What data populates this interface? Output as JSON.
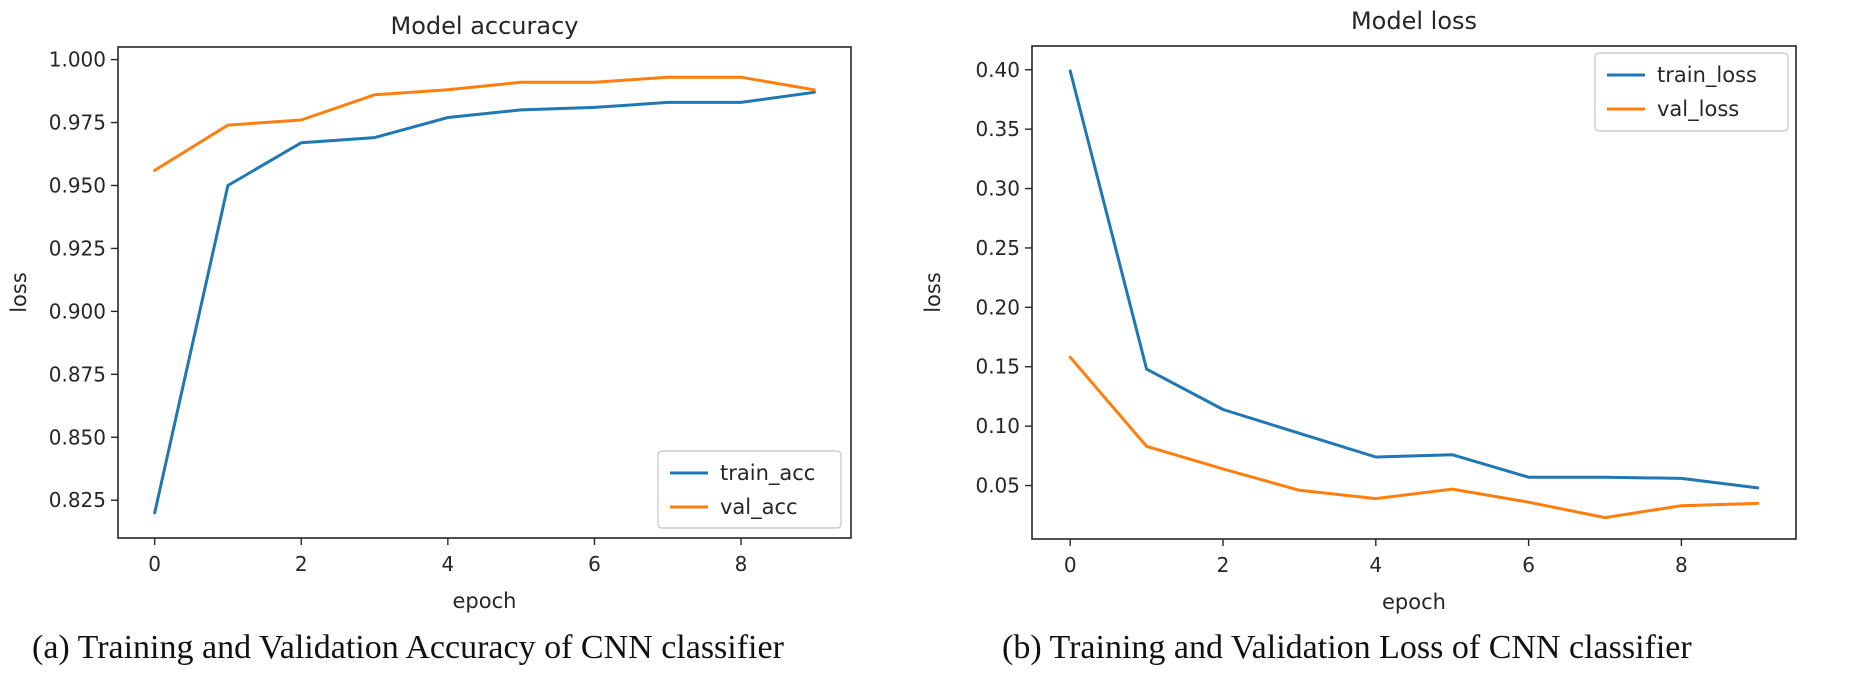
{
  "chart_data": [
    {
      "type": "line",
      "title": "Model accuracy",
      "xlabel": "epoch",
      "ylabel": "loss",
      "xlim": [
        -0.5,
        9.5
      ],
      "ylim": [
        0.81,
        1.005
      ],
      "xticks": [
        0,
        2,
        4,
        6,
        8
      ],
      "xtick_labels": [
        "0",
        "2",
        "4",
        "6",
        "8"
      ],
      "yticks": [
        0.825,
        0.85,
        0.875,
        0.9,
        0.925,
        0.95,
        0.975,
        1.0
      ],
      "ytick_labels": [
        "0.825",
        "0.850",
        "0.875",
        "0.900",
        "0.925",
        "0.950",
        "0.975",
        "1.000"
      ],
      "x": [
        0,
        1,
        2,
        3,
        4,
        5,
        6,
        7,
        8,
        9
      ],
      "series": [
        {
          "name": "train_acc",
          "color": "#1f77b4",
          "values": [
            0.82,
            0.95,
            0.967,
            0.969,
            0.977,
            0.98,
            0.981,
            0.983,
            0.983,
            0.987
          ]
        },
        {
          "name": "val_acc",
          "color": "#ff7f0e",
          "values": [
            0.956,
            0.974,
            0.976,
            0.986,
            0.988,
            0.991,
            0.991,
            0.993,
            0.993,
            0.988
          ]
        }
      ],
      "legend": "lower-right",
      "caption": "(a) Training and Validation Accuracy of CNN classifier"
    },
    {
      "type": "line",
      "title": "Model loss",
      "xlabel": "epoch",
      "ylabel": "loss",
      "xlim": [
        -0.5,
        9.5
      ],
      "ylim": [
        0.005,
        0.42
      ],
      "xticks": [
        0,
        2,
        4,
        6,
        8
      ],
      "xtick_labels": [
        "0",
        "2",
        "4",
        "6",
        "8"
      ],
      "yticks": [
        0.05,
        0.1,
        0.15,
        0.2,
        0.25,
        0.3,
        0.35,
        0.4
      ],
      "ytick_labels": [
        "0.05",
        "0.10",
        "0.15",
        "0.20",
        "0.25",
        "0.30",
        "0.35",
        "0.40"
      ],
      "x": [
        0,
        1,
        2,
        3,
        4,
        5,
        6,
        7,
        8,
        9
      ],
      "series": [
        {
          "name": "train_loss",
          "color": "#1f77b4",
          "values": [
            0.399,
            0.148,
            0.114,
            0.094,
            0.074,
            0.076,
            0.057,
            0.057,
            0.056,
            0.048
          ]
        },
        {
          "name": "val_loss",
          "color": "#ff7f0e",
          "values": [
            0.158,
            0.083,
            0.064,
            0.046,
            0.039,
            0.047,
            0.036,
            0.023,
            0.033,
            0.035
          ]
        }
      ],
      "legend": "upper-right",
      "caption": "(b) Training and Validation Loss of CNN classifier"
    }
  ]
}
